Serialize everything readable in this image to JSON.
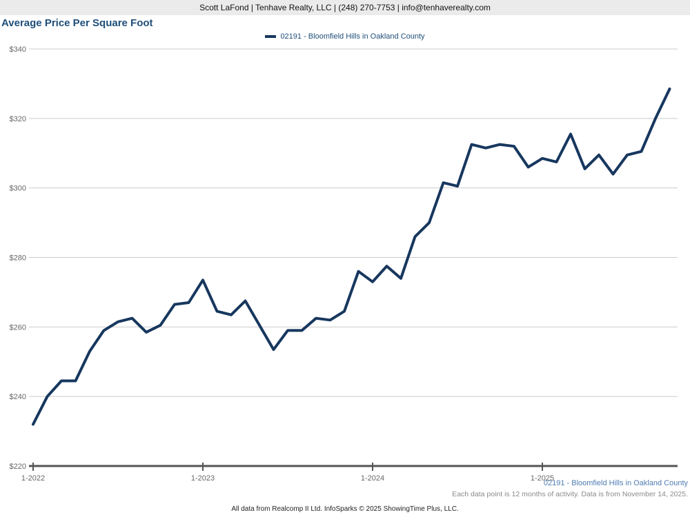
{
  "header": {
    "contact_bar": "Scott LaFond | Tenhave Realty, LLC | (248) 270-7753 | info@tenhaverealty.com"
  },
  "title": "Average Price Per Square Foot",
  "legend": {
    "label": "02191 - Bloomfield Hills in Oakland County"
  },
  "chart_data": {
    "type": "line",
    "title": "Average Price Per Square Foot",
    "series_name": "02191 - Bloomfield Hills in Oakland County",
    "x": [
      "1-2022",
      "2-2022",
      "3-2022",
      "4-2022",
      "5-2022",
      "6-2022",
      "7-2022",
      "8-2022",
      "9-2022",
      "10-2022",
      "11-2022",
      "12-2022",
      "1-2023",
      "2-2023",
      "3-2023",
      "4-2023",
      "5-2023",
      "6-2023",
      "7-2023",
      "8-2023",
      "9-2023",
      "10-2023",
      "11-2023",
      "12-2023",
      "1-2024",
      "2-2024",
      "3-2024",
      "4-2024",
      "5-2024",
      "6-2024",
      "7-2024",
      "8-2024",
      "9-2024",
      "10-2024",
      "11-2024",
      "12-2024",
      "1-2025",
      "2-2025",
      "3-2025",
      "4-2025",
      "5-2025",
      "6-2025",
      "7-2025",
      "8-2025",
      "9-2025",
      "10-2025"
    ],
    "values": [
      232,
      240,
      244.5,
      244.5,
      253,
      259,
      261.5,
      262.5,
      258.5,
      260.5,
      266.5,
      267,
      273.5,
      264.5,
      263.5,
      267.5,
      260.5,
      253.5,
      259,
      259,
      262.5,
      262,
      264.5,
      276,
      273,
      277.5,
      274,
      286,
      290,
      301.5,
      300.5,
      312.5,
      311.5,
      312.5,
      312,
      306,
      308.5,
      307.5,
      315.5,
      305.5,
      309.5,
      304,
      309.5,
      310.5,
      320,
      328.5
    ],
    "ylim": [
      220,
      340
    ],
    "ytick_interval": 20,
    "ytick_prefix": "$",
    "yticks": [
      "$340",
      "$320",
      "$300",
      "$280",
      "$260",
      "$240",
      "$220"
    ],
    "xticks": [
      "1-2022",
      "1-2023",
      "1-2024",
      "1-2025"
    ],
    "grid": true,
    "legend_position": "top-center",
    "line_color": "#17375e",
    "gridline_color": "#cccccc",
    "axis_color": "#555555",
    "tick_label_color": "#666666"
  },
  "footer": {
    "series_label": "02191 - Bloomfield Hills in Oakland County",
    "note": "Each data point is 12 months of activity. Data is from November 14, 2025.",
    "attribution": "All data from Realcomp II Ltd. InfoSparks © 2025 ShowingTime Plus, LLC."
  }
}
